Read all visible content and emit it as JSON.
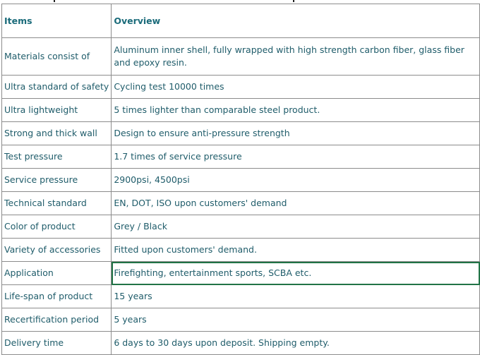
{
  "table": {
    "headers": {
      "items": "Items",
      "overview": "Overview"
    },
    "rows": [
      {
        "item": "Materials consist of",
        "overview": "Aluminum inner shell, fully wrapped with high strength carbon fiber, glass fiber and epoxy resin."
      },
      {
        "item": "Ultra standard of safety",
        "overview": "Cycling test 10000 times"
      },
      {
        "item": "Ultra lightweight",
        "overview": "5 times lighter than comparable steel product."
      },
      {
        "item": "Strong and thick wall",
        "overview": "Design to ensure anti-pressure strength"
      },
      {
        "item": "Test pressure",
        "overview": "1.7 times of service pressure"
      },
      {
        "item": "Service pressure",
        "overview": "2900psi, 4500psi"
      },
      {
        "item": "Technical standard",
        "overview": "EN, DOT, ISO upon customers' demand"
      },
      {
        "item": "Color of product",
        "overview": "Grey / Black"
      },
      {
        "item": "Variety of accessories",
        "overview": "Fitted upon customers' demand."
      },
      {
        "item": "Application",
        "overview": "Firefighting, entertainment sports, SCBA etc."
      },
      {
        "item": "Life-span of product",
        "overview": "15 years"
      },
      {
        "item": "Recertification period",
        "overview": "5 years"
      },
      {
        "item": "Delivery time",
        "overview": "6 days to 30 days upon deposit. Shipping empty."
      }
    ],
    "selected_row": 9,
    "colors": {
      "text": "#1f5c6a",
      "grid": "#8c8c8c",
      "selection": "#217346"
    }
  }
}
